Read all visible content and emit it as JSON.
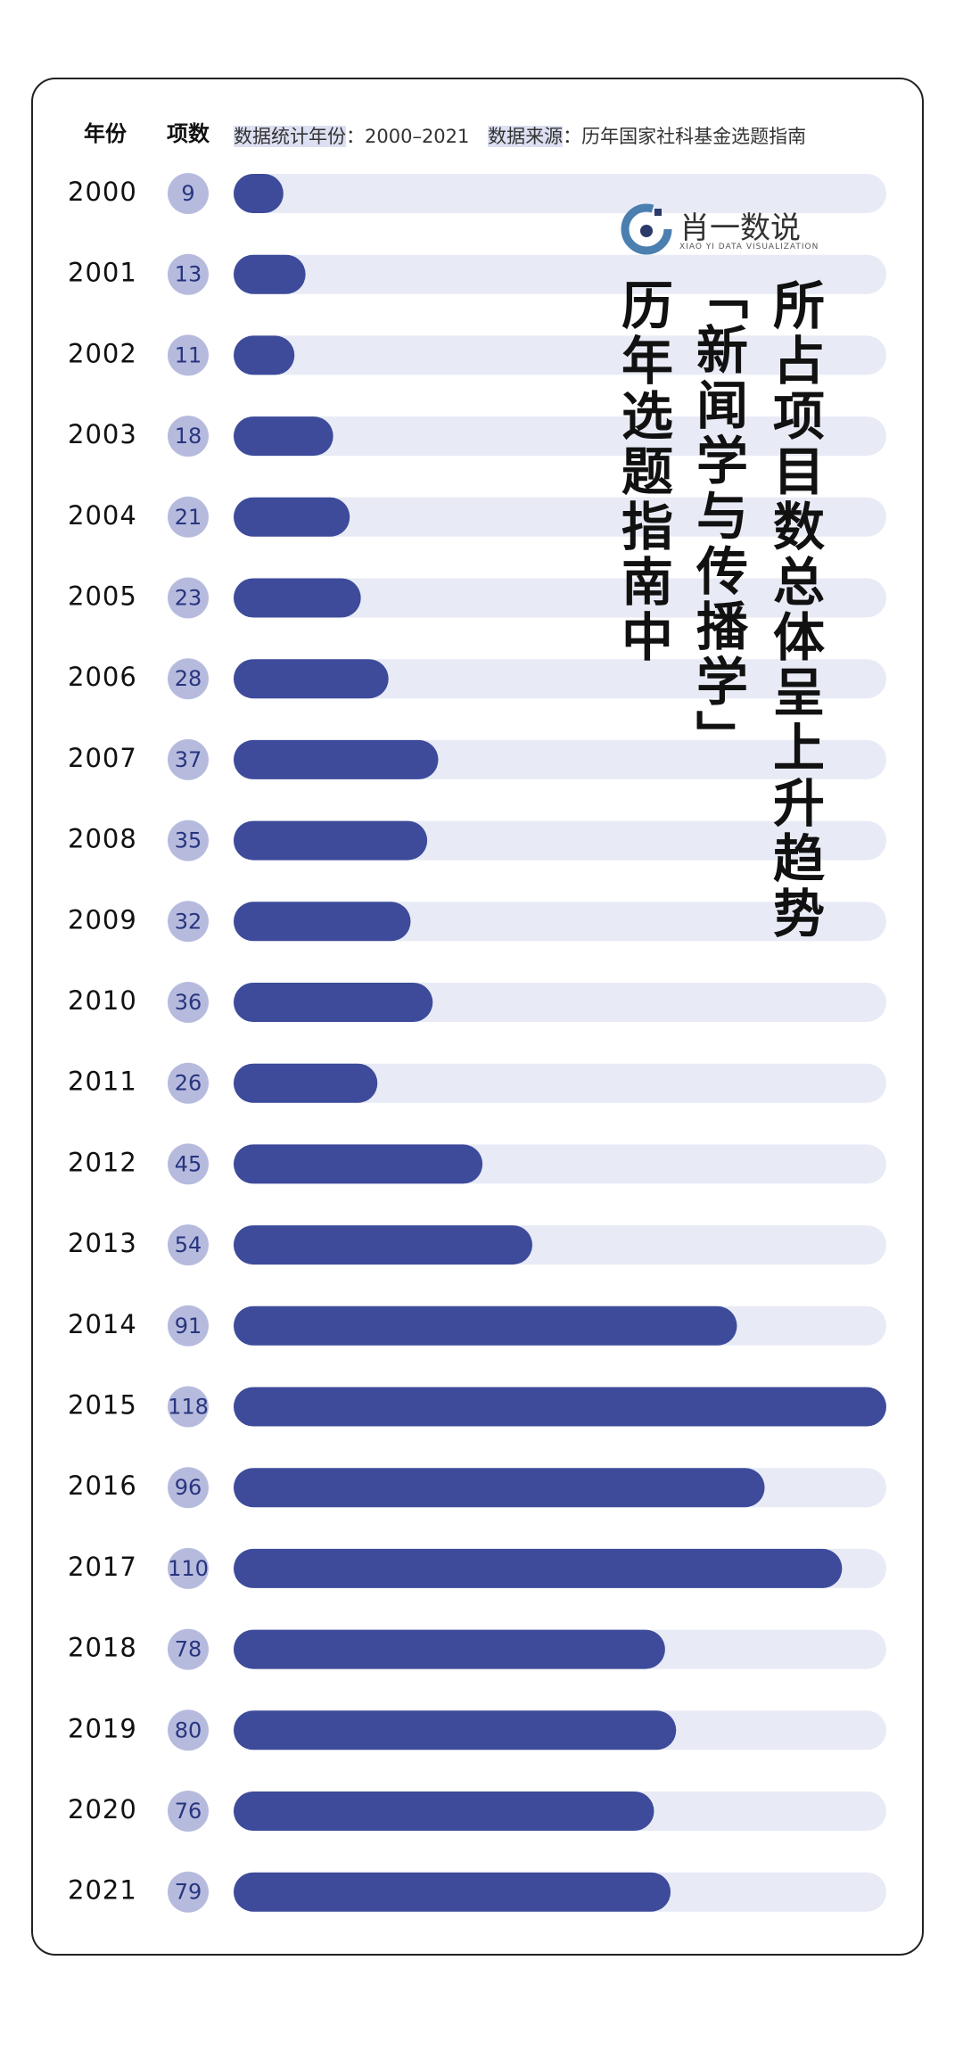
{
  "chart_data": {
    "type": "bar",
    "orientation": "horizontal",
    "title_lines": [
      "历年选题指南中",
      "「新闻学与传播学」",
      "所占项目数总体呈上升趋势"
    ],
    "brand": "肖一数说",
    "brand_subtitle": "XIAO YI DATA VISUALIZATION",
    "category_header": "年份",
    "value_header": "项数",
    "period_label": "数据统计年份",
    "period": "：2000–2021",
    "source_label": "数据来源",
    "source": "：历年国家社科基金选题指南",
    "categories": [
      "2000",
      "2001",
      "2002",
      "2003",
      "2004",
      "2005",
      "2006",
      "2007",
      "2008",
      "2009",
      "2010",
      "2011",
      "2012",
      "2013",
      "2014",
      "2015",
      "2016",
      "2017",
      "2018",
      "2019",
      "2020",
      "2021"
    ],
    "values": [
      9,
      13,
      11,
      18,
      21,
      23,
      28,
      37,
      35,
      32,
      36,
      26,
      45,
      54,
      91,
      118,
      96,
      110,
      78,
      80,
      76,
      79
    ],
    "color": "#3d4b9a",
    "track_color": "#e8ebf5",
    "badge_color": "#b6bbde",
    "xlim": [
      0,
      118
    ]
  }
}
